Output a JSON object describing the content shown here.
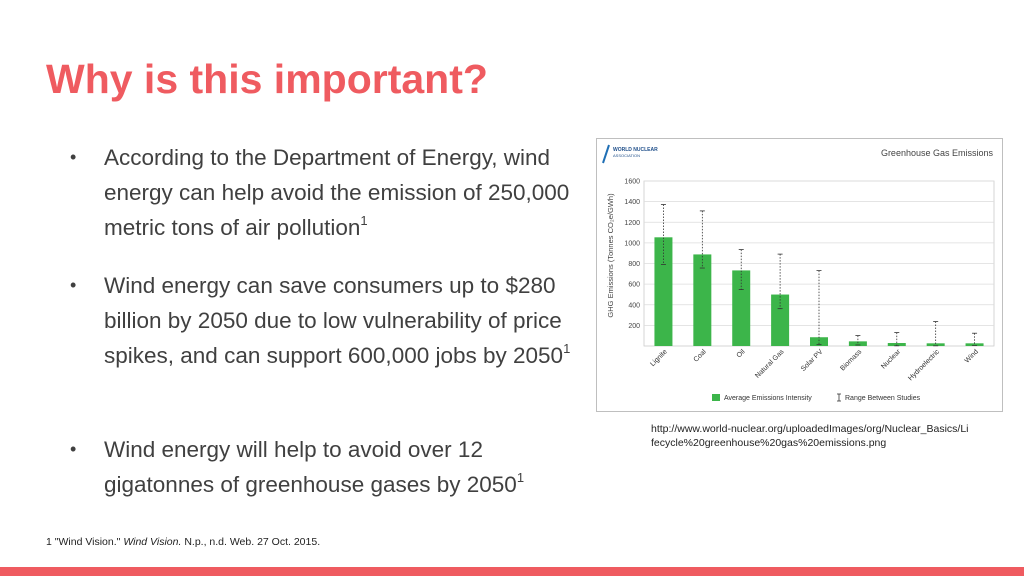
{
  "slide": {
    "title": "Why is this important?",
    "bullets": [
      {
        "text": "According to the Department of Energy, wind energy can help avoid the emission of 250,000 metric tons of air pollution",
        "sup": "1"
      },
      {
        "text": "Wind energy can save consumers up to $280 billion by 2050 due to low vulnerability of price spikes, and can support 600,000 jobs by 2050",
        "sup": "1"
      },
      {
        "text": "Wind energy will help to avoid over 12 gigatonnes of greenhouse gases by 2050",
        "sup": "1"
      }
    ],
    "source_url": "http://www.world-nuclear.org/uploadedImages/org/Nuclear_Basics/Lifecycle%20greenhouse%20gas%20emissions.png",
    "footnote": {
      "number": "1",
      "pre": "\"Wind Vision.\"",
      "italic": "Wind Vision.",
      "post": "N.p., n.d. Web. 27 Oct. 2015."
    },
    "colors": {
      "accent": "#ef5b60",
      "bar": "#3cb54a"
    }
  },
  "chart_data": {
    "type": "bar",
    "title": "Greenhouse Gas Emissions",
    "logo_text": [
      "WORLD NUCLEAR",
      "ASSOCIATION"
    ],
    "ylabel": "GHG Emissions (Tonnes CO₂e/GWh)",
    "ylim": [
      0,
      1600
    ],
    "yticks": [
      200,
      400,
      600,
      800,
      1000,
      1200,
      1400,
      1600
    ],
    "categories": [
      "Lignite",
      "Coal",
      "Oil",
      "Natural Gas",
      "Solar PV",
      "Biomass",
      "Nuclear",
      "Hydroelectric",
      "Wind"
    ],
    "series": [
      {
        "name": "Average Emissions Intensity",
        "values": [
          1054,
          888,
          733,
          499,
          85,
          45,
          29,
          26,
          26
        ]
      }
    ],
    "range_min": [
      790,
      756,
      547,
      362,
      13,
      10,
      2,
      2,
      6
    ],
    "range_max": [
      1372,
      1310,
      935,
      891,
      731,
      101,
      130,
      237,
      124
    ],
    "legend": [
      "Average Emissions Intensity",
      "Range Between Studies"
    ],
    "legend_position": "bottom",
    "grid": true
  }
}
